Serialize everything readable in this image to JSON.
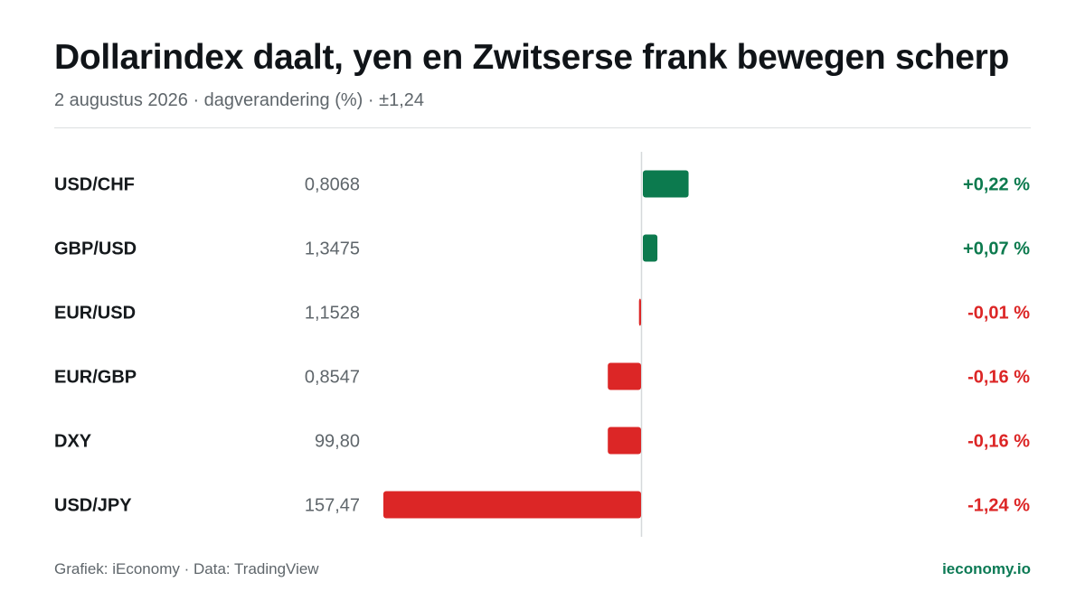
{
  "header": {
    "title": "Dollarindex daalt, yen en Zwitserse frank bewegen scherp",
    "subtitle": "2 augustus 2026 · dagverandering (%) · ±1,24"
  },
  "footer": {
    "credit": "Grafiek: iEconomy · Data: TradingView",
    "brand": "ieconomy.io"
  },
  "colors": {
    "positive": "#0c7a4e",
    "negative": "#dc2626",
    "axis": "#d6d9db",
    "label": "#15191c",
    "price": "#5f666b"
  },
  "chart_data": {
    "type": "bar",
    "orientation": "horizontal",
    "categories": [
      "USD/CHF",
      "GBP/USD",
      "EUR/USD",
      "EUR/GBP",
      "DXY",
      "USD/JPY"
    ],
    "prices": [
      "0,8068",
      "1,3475",
      "1,1528",
      "0,8547",
      "99,80",
      "157,47"
    ],
    "values": [
      0.22,
      0.07,
      -0.01,
      -0.16,
      -0.16,
      -1.24
    ],
    "value_labels": [
      "+0,22 %",
      "+0,07 %",
      "-0,01 %",
      "-0,16 %",
      "-0,16 %",
      "-1,24 %"
    ],
    "xlim": [
      -1.24,
      1.24
    ],
    "grid": false,
    "legend": "none"
  }
}
